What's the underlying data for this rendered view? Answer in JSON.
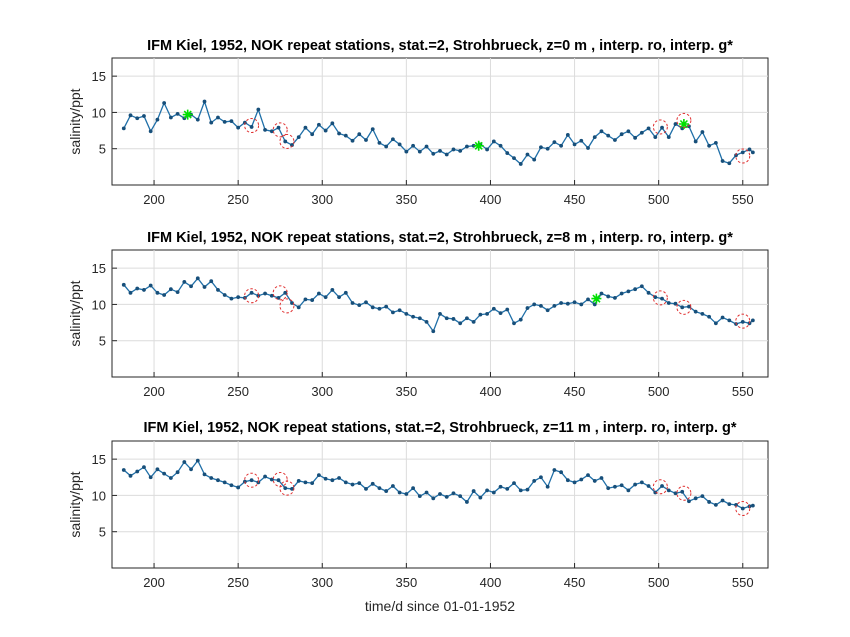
{
  "chart_data": [
    {
      "type": "line",
      "title": "IFM Kiel, 1952, NOK repeat stations, stat.=2, Strohbrueck, z=0 m , interp. ro, interp. g*",
      "xlabel": "",
      "ylabel": "salinity/ppt",
      "xlim": [
        175,
        565
      ],
      "ylim": [
        0,
        17.5
      ],
      "xticks": [
        200,
        250,
        300,
        350,
        400,
        450,
        500,
        550
      ],
      "yticks": [
        5,
        10,
        15
      ],
      "grid": true,
      "series": [
        {
          "style": "line-with-dots",
          "color": "#1f6fa8",
          "x": [
            182,
            186,
            190,
            194,
            198,
            202,
            206,
            210,
            214,
            218,
            222,
            226,
            230,
            234,
            238,
            242,
            246,
            250,
            254,
            258,
            262,
            266,
            270,
            274,
            278,
            282,
            286,
            290,
            294,
            298,
            302,
            306,
            310,
            314,
            318,
            322,
            326,
            330,
            334,
            338,
            342,
            346,
            350,
            354,
            358,
            362,
            366,
            370,
            374,
            378,
            382,
            386,
            390,
            394,
            398,
            402,
            406,
            410,
            414,
            418,
            422,
            426,
            430,
            434,
            438,
            442,
            446,
            450,
            454,
            458,
            462,
            466,
            470,
            474,
            478,
            482,
            486,
            490,
            494,
            498,
            502,
            506,
            510,
            514,
            518,
            522,
            526,
            530,
            534,
            538,
            542,
            546,
            550,
            554,
            556
          ],
          "values": [
            7.8,
            9.6,
            9.2,
            9.5,
            7.4,
            9.0,
            11.3,
            9.3,
            9.8,
            9.2,
            9.7,
            9.0,
            11.5,
            8.6,
            9.3,
            8.7,
            8.8,
            7.9,
            8.6,
            8.0,
            10.4,
            7.6,
            7.4,
            7.9,
            6.0,
            5.5,
            6.6,
            7.9,
            7.0,
            8.3,
            7.5,
            8.5,
            7.1,
            6.8,
            6.1,
            7.0,
            6.2,
            7.7,
            5.8,
            5.3,
            6.3,
            5.6,
            4.6,
            5.4,
            4.6,
            5.3,
            4.3,
            4.7,
            4.2,
            4.9,
            4.7,
            5.3,
            5.4,
            5.6,
            4.9,
            6.0,
            5.4,
            4.4,
            3.7,
            2.9,
            4.2,
            3.5,
            5.2,
            5.0,
            5.9,
            5.4,
            6.9,
            5.6,
            6.1,
            5.1,
            6.6,
            7.4,
            6.8,
            6.2,
            7.0,
            7.4,
            6.5,
            7.2,
            7.8,
            6.6,
            7.9,
            6.6,
            8.4,
            7.8,
            8.1,
            6.0,
            7.3,
            5.4,
            5.8,
            3.3,
            3.0,
            4.1,
            4.5,
            4.9,
            4.5
          ]
        },
        {
          "style": "green-star",
          "color": "#00e000",
          "x": [
            220,
            393,
            515
          ],
          "values": [
            9.7,
            5.4,
            8.4
          ]
        },
        {
          "style": "red-dashed-circle",
          "color": "#e03030",
          "x": [
            258,
            275,
            279,
            501,
            515,
            550
          ],
          "values": [
            8.2,
            7.6,
            6.0,
            8.0,
            8.9,
            4.0
          ]
        }
      ]
    },
    {
      "type": "line",
      "title": "IFM Kiel, 1952, NOK repeat stations, stat.=2, Strohbrueck, z=8 m , interp. ro, interp. g*",
      "xlabel": "",
      "ylabel": "salinity/ppt",
      "xlim": [
        175,
        565
      ],
      "ylim": [
        0,
        17.5
      ],
      "xticks": [
        200,
        250,
        300,
        350,
        400,
        450,
        500,
        550
      ],
      "yticks": [
        5,
        10,
        15
      ],
      "grid": true,
      "series": [
        {
          "style": "line-with-dots",
          "color": "#1f6fa8",
          "x": [
            182,
            186,
            190,
            194,
            198,
            202,
            206,
            210,
            214,
            218,
            222,
            226,
            230,
            234,
            238,
            242,
            246,
            250,
            254,
            258,
            262,
            266,
            270,
            274,
            278,
            282,
            286,
            290,
            294,
            298,
            302,
            306,
            310,
            314,
            318,
            322,
            326,
            330,
            334,
            338,
            342,
            346,
            350,
            354,
            358,
            362,
            366,
            370,
            374,
            378,
            382,
            386,
            390,
            394,
            398,
            402,
            406,
            410,
            414,
            418,
            422,
            426,
            430,
            434,
            438,
            442,
            446,
            450,
            454,
            458,
            462,
            466,
            470,
            474,
            478,
            482,
            486,
            490,
            494,
            498,
            502,
            506,
            510,
            514,
            518,
            522,
            526,
            530,
            534,
            538,
            542,
            546,
            550,
            554,
            556
          ],
          "values": [
            12.7,
            11.6,
            12.2,
            12.0,
            12.6,
            11.6,
            11.3,
            12.1,
            11.7,
            13.1,
            12.5,
            13.6,
            12.4,
            13.2,
            12.0,
            11.3,
            10.8,
            11.0,
            10.9,
            11.6,
            11.2,
            11.5,
            11.2,
            10.9,
            11.6,
            10.2,
            9.6,
            10.7,
            10.6,
            11.5,
            11.0,
            12.0,
            11.0,
            11.6,
            10.2,
            9.9,
            10.3,
            9.6,
            9.4,
            9.7,
            8.9,
            9.2,
            8.7,
            8.3,
            8.1,
            7.6,
            6.3,
            8.7,
            8.1,
            8.0,
            7.4,
            8.1,
            7.6,
            8.6,
            8.7,
            9.4,
            8.8,
            9.3,
            7.4,
            7.9,
            9.5,
            10.0,
            9.8,
            9.2,
            9.8,
            10.2,
            10.1,
            10.3,
            10.0,
            10.7,
            10.0,
            11.5,
            11.1,
            10.9,
            11.5,
            11.8,
            12.1,
            12.5,
            11.6,
            11.0,
            10.8,
            10.2,
            10.1,
            9.6,
            9.7,
            9.0,
            8.7,
            8.3,
            7.4,
            8.2,
            7.8,
            7.3,
            7.6,
            7.4,
            7.8
          ]
        },
        {
          "style": "green-star",
          "color": "#00e000",
          "x": [
            463
          ],
          "values": [
            10.8
          ]
        },
        {
          "style": "red-dashed-circle",
          "color": "#e03030",
          "x": [
            258,
            275,
            279,
            501,
            515,
            550
          ],
          "values": [
            11.2,
            11.6,
            9.8,
            10.9,
            9.6,
            7.7
          ]
        }
      ]
    },
    {
      "type": "line",
      "title": "IFM Kiel, 1952, NOK repeat stations, stat.=2, Strohbrueck, z=11 m , interp. ro, interp. g*",
      "xlabel": "time/d since 01-01-1952",
      "ylabel": "salinity/ppt",
      "xlim": [
        175,
        565
      ],
      "ylim": [
        0,
        17.5
      ],
      "xticks": [
        200,
        250,
        300,
        350,
        400,
        450,
        500,
        550
      ],
      "yticks": [
        5,
        10,
        15
      ],
      "grid": true,
      "series": [
        {
          "style": "line-with-dots",
          "color": "#1f6fa8",
          "x": [
            182,
            186,
            190,
            194,
            198,
            202,
            206,
            210,
            214,
            218,
            222,
            226,
            230,
            234,
            238,
            242,
            246,
            250,
            254,
            258,
            262,
            266,
            270,
            274,
            278,
            282,
            286,
            290,
            294,
            298,
            302,
            306,
            310,
            314,
            318,
            322,
            326,
            330,
            334,
            338,
            342,
            346,
            350,
            354,
            358,
            362,
            366,
            370,
            374,
            378,
            382,
            386,
            390,
            394,
            398,
            402,
            406,
            410,
            414,
            418,
            422,
            426,
            430,
            434,
            438,
            442,
            446,
            450,
            454,
            458,
            462,
            466,
            470,
            474,
            478,
            482,
            486,
            490,
            494,
            498,
            502,
            506,
            510,
            514,
            518,
            522,
            526,
            530,
            534,
            538,
            542,
            546,
            550,
            554,
            556
          ],
          "values": [
            13.5,
            12.7,
            13.3,
            13.9,
            12.5,
            13.6,
            13.0,
            12.4,
            13.2,
            14.6,
            13.6,
            14.8,
            12.9,
            12.4,
            12.1,
            11.8,
            11.4,
            11.1,
            11.9,
            12.1,
            11.8,
            12.6,
            12.2,
            12.1,
            11.0,
            10.9,
            12.0,
            11.8,
            11.7,
            12.8,
            12.3,
            12.1,
            12.4,
            11.8,
            11.5,
            11.7,
            10.9,
            11.6,
            11.0,
            10.6,
            11.3,
            10.4,
            10.2,
            11.0,
            9.9,
            10.4,
            9.6,
            10.2,
            9.8,
            10.3,
            9.9,
            9.1,
            10.6,
            9.7,
            10.7,
            10.4,
            11.2,
            10.9,
            11.7,
            10.7,
            10.8,
            12.0,
            12.5,
            11.2,
            13.5,
            13.2,
            12.1,
            11.8,
            12.2,
            12.8,
            12.0,
            12.4,
            11.0,
            11.2,
            11.4,
            10.7,
            11.5,
            11.8,
            11.3,
            10.4,
            11.3,
            10.7,
            10.3,
            10.5,
            9.2,
            9.6,
            9.9,
            9.1,
            8.7,
            9.3,
            8.8,
            8.7,
            8.2,
            8.5,
            8.6
          ]
        },
        {
          "style": "red-dashed-circle",
          "color": "#e03030",
          "x": [
            258,
            275,
            279,
            501,
            515,
            550
          ],
          "values": [
            12.1,
            12.2,
            11.0,
            11.2,
            10.3,
            8.2
          ]
        }
      ]
    }
  ]
}
